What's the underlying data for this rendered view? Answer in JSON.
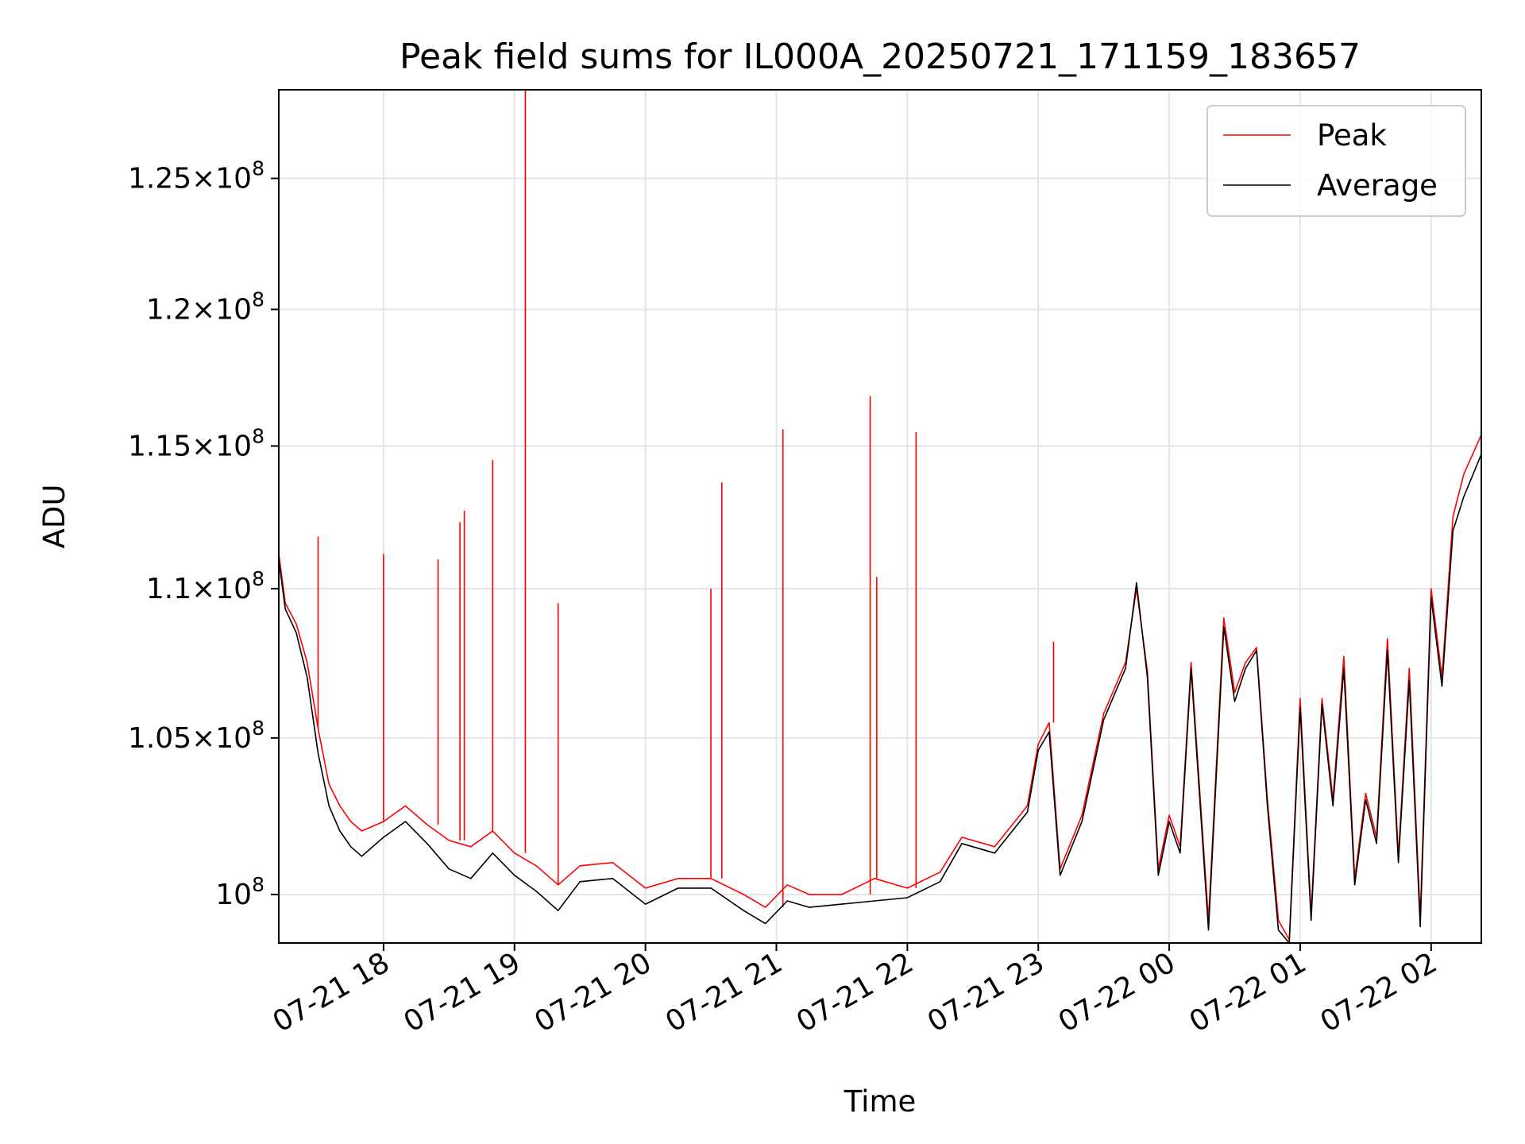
{
  "chart_data": {
    "type": "line",
    "title": "Peak field sums for IL000A_20250721_171159_183657",
    "xlabel": "Time",
    "ylabel": "ADU",
    "y_scale": "log",
    "grid": true,
    "legend_position": "top-right",
    "xlim": [
      "2025-07-21 17:12",
      "2025-07-22 02:23"
    ],
    "ylim": [
      98500000,
      128500000
    ],
    "x_ticks": [
      {
        "value": "2025-07-21 18:00",
        "label": "07-21 18"
      },
      {
        "value": "2025-07-21 19:00",
        "label": "07-21 19"
      },
      {
        "value": "2025-07-21 20:00",
        "label": "07-21 20"
      },
      {
        "value": "2025-07-21 21:00",
        "label": "07-21 21"
      },
      {
        "value": "2025-07-21 22:00",
        "label": "07-21 22"
      },
      {
        "value": "2025-07-21 23:00",
        "label": "07-21 23"
      },
      {
        "value": "2025-07-22 00:00",
        "label": "07-22 00"
      },
      {
        "value": "2025-07-22 01:00",
        "label": "07-22 01"
      },
      {
        "value": "2025-07-22 02:00",
        "label": "07-22 02"
      }
    ],
    "y_ticks": [
      {
        "value": 100000000,
        "mantissa": "",
        "exponent": "8",
        "label": "10^8"
      },
      {
        "value": 105000000,
        "mantissa": "1.05",
        "exponent": "8",
        "label": "1.05×10^8"
      },
      {
        "value": 110000000,
        "mantissa": "1.1",
        "exponent": "8",
        "label": "1.1×10^8"
      },
      {
        "value": 115000000,
        "mantissa": "1.15",
        "exponent": "8",
        "label": "1.15×10^8"
      },
      {
        "value": 120000000,
        "mantissa": "1.2",
        "exponent": "8",
        "label": "1.2×10^8"
      },
      {
        "value": 125000000,
        "mantissa": "1.25",
        "exponent": "8",
        "label": "1.25×10^8"
      }
    ],
    "series": [
      {
        "name": "Peak",
        "color": "#ff0000",
        "points": [
          [
            "2025-07-21 17:12",
            111200000
          ],
          [
            "2025-07-21 17:15",
            109500000
          ],
          [
            "2025-07-21 17:20",
            108800000
          ],
          [
            "2025-07-21 17:25",
            107500000
          ],
          [
            "2025-07-21 17:30",
            105300000
          ],
          [
            "2025-07-21 17:35",
            103500000
          ],
          [
            "2025-07-21 17:40",
            102800000
          ],
          [
            "2025-07-21 17:45",
            102300000
          ],
          [
            "2025-07-21 17:50",
            102000000
          ],
          [
            "2025-07-21 18:00",
            102300000
          ],
          [
            "2025-07-21 18:10",
            102800000
          ],
          [
            "2025-07-21 18:20",
            102200000
          ],
          [
            "2025-07-21 18:30",
            101700000
          ],
          [
            "2025-07-21 18:40",
            101500000
          ],
          [
            "2025-07-21 18:50",
            102000000
          ],
          [
            "2025-07-21 19:00",
            101300000
          ],
          [
            "2025-07-21 19:10",
            100900000
          ],
          [
            "2025-07-21 19:20",
            100300000
          ],
          [
            "2025-07-21 19:30",
            100900000
          ],
          [
            "2025-07-21 19:45",
            101000000
          ],
          [
            "2025-07-21 20:00",
            100200000
          ],
          [
            "2025-07-21 20:15",
            100500000
          ],
          [
            "2025-07-21 20:30",
            100500000
          ],
          [
            "2025-07-21 20:45",
            100000000
          ],
          [
            "2025-07-21 20:55",
            99600000
          ],
          [
            "2025-07-21 21:05",
            100300000
          ],
          [
            "2025-07-21 21:15",
            100000000
          ],
          [
            "2025-07-21 21:30",
            100000000
          ],
          [
            "2025-07-21 21:45",
            100500000
          ],
          [
            "2025-07-21 22:00",
            100200000
          ],
          [
            "2025-07-21 22:15",
            100700000
          ],
          [
            "2025-07-21 22:25",
            101800000
          ],
          [
            "2025-07-21 22:40",
            101500000
          ],
          [
            "2025-07-21 22:55",
            102800000
          ],
          [
            "2025-07-21 23:00",
            104800000
          ],
          [
            "2025-07-21 23:05",
            105500000
          ],
          [
            "2025-07-21 23:10",
            100800000
          ],
          [
            "2025-07-21 23:20",
            102500000
          ],
          [
            "2025-07-21 23:30",
            105800000
          ],
          [
            "2025-07-21 23:40",
            107500000
          ],
          [
            "2025-07-21 23:45",
            110000000
          ],
          [
            "2025-07-21 23:50",
            107200000
          ],
          [
            "2025-07-21 23:55",
            100800000
          ],
          [
            "2025-07-22 00:00",
            102500000
          ],
          [
            "2025-07-22 00:05",
            101500000
          ],
          [
            "2025-07-22 00:10",
            107500000
          ],
          [
            "2025-07-22 00:18",
            99200000
          ],
          [
            "2025-07-22 00:25",
            109000000
          ],
          [
            "2025-07-22 00:30",
            106500000
          ],
          [
            "2025-07-22 00:35",
            107500000
          ],
          [
            "2025-07-22 00:40",
            108000000
          ],
          [
            "2025-07-22 00:45",
            103000000
          ],
          [
            "2025-07-22 00:50",
            99200000
          ],
          [
            "2025-07-22 00:55",
            98600000
          ],
          [
            "2025-07-22 01:00",
            106300000
          ],
          [
            "2025-07-22 01:05",
            99400000
          ],
          [
            "2025-07-22 01:10",
            106300000
          ],
          [
            "2025-07-22 01:15",
            103000000
          ],
          [
            "2025-07-22 01:20",
            107700000
          ],
          [
            "2025-07-22 01:25",
            100500000
          ],
          [
            "2025-07-22 01:30",
            103200000
          ],
          [
            "2025-07-22 01:35",
            101800000
          ],
          [
            "2025-07-22 01:40",
            108300000
          ],
          [
            "2025-07-22 01:45",
            101200000
          ],
          [
            "2025-07-22 01:50",
            107300000
          ],
          [
            "2025-07-22 01:55",
            99300000
          ],
          [
            "2025-07-22 02:00",
            110000000
          ],
          [
            "2025-07-22 02:05",
            107000000
          ],
          [
            "2025-07-22 02:10",
            112500000
          ],
          [
            "2025-07-22 02:15",
            114000000
          ],
          [
            "2025-07-22 02:23",
            115400000
          ]
        ],
        "spikes": [
          [
            "2025-07-21 17:30",
            111800000
          ],
          [
            "2025-07-21 18:00",
            111200000
          ],
          [
            "2025-07-21 18:25",
            111000000
          ],
          [
            "2025-07-21 18:35",
            112300000
          ],
          [
            "2025-07-21 18:37",
            112700000
          ],
          [
            "2025-07-21 18:50",
            114500000
          ],
          [
            "2025-07-21 19:05",
            128500000
          ],
          [
            "2025-07-21 19:20",
            109500000
          ],
          [
            "2025-07-21 20:30",
            110000000
          ],
          [
            "2025-07-21 20:35",
            113700000
          ],
          [
            "2025-07-21 21:03",
            115600000
          ],
          [
            "2025-07-21 21:43",
            116800000
          ],
          [
            "2025-07-21 21:46",
            110400000
          ],
          [
            "2025-07-21 22:04",
            115500000
          ],
          [
            "2025-07-21 23:07",
            108200000
          ]
        ]
      },
      {
        "name": "Average",
        "color": "#000000",
        "points": [
          [
            "2025-07-21 17:12",
            111000000
          ],
          [
            "2025-07-21 17:15",
            109300000
          ],
          [
            "2025-07-21 17:20",
            108500000
          ],
          [
            "2025-07-21 17:25",
            107000000
          ],
          [
            "2025-07-21 17:30",
            104500000
          ],
          [
            "2025-07-21 17:35",
            102800000
          ],
          [
            "2025-07-21 17:40",
            102000000
          ],
          [
            "2025-07-21 17:45",
            101500000
          ],
          [
            "2025-07-21 17:50",
            101200000
          ],
          [
            "2025-07-21 18:00",
            101800000
          ],
          [
            "2025-07-21 18:10",
            102300000
          ],
          [
            "2025-07-21 18:20",
            101600000
          ],
          [
            "2025-07-21 18:30",
            100800000
          ],
          [
            "2025-07-21 18:40",
            100500000
          ],
          [
            "2025-07-21 18:50",
            101300000
          ],
          [
            "2025-07-21 19:00",
            100600000
          ],
          [
            "2025-07-21 19:10",
            100100000
          ],
          [
            "2025-07-21 19:20",
            99500000
          ],
          [
            "2025-07-21 19:30",
            100400000
          ],
          [
            "2025-07-21 19:45",
            100500000
          ],
          [
            "2025-07-21 20:00",
            99700000
          ],
          [
            "2025-07-21 20:15",
            100200000
          ],
          [
            "2025-07-21 20:30",
            100200000
          ],
          [
            "2025-07-21 20:45",
            99500000
          ],
          [
            "2025-07-21 20:55",
            99100000
          ],
          [
            "2025-07-21 21:05",
            99800000
          ],
          [
            "2025-07-21 21:15",
            99600000
          ],
          [
            "2025-07-21 21:30",
            99700000
          ],
          [
            "2025-07-21 21:45",
            99800000
          ],
          [
            "2025-07-21 22:00",
            99900000
          ],
          [
            "2025-07-21 22:15",
            100400000
          ],
          [
            "2025-07-21 22:25",
            101600000
          ],
          [
            "2025-07-21 22:40",
            101300000
          ],
          [
            "2025-07-21 22:55",
            102600000
          ],
          [
            "2025-07-21 23:00",
            104600000
          ],
          [
            "2025-07-21 23:05",
            105200000
          ],
          [
            "2025-07-21 23:10",
            100600000
          ],
          [
            "2025-07-21 23:20",
            102300000
          ],
          [
            "2025-07-21 23:30",
            105600000
          ],
          [
            "2025-07-21 23:40",
            107300000
          ],
          [
            "2025-07-21 23:45",
            110200000
          ],
          [
            "2025-07-21 23:50",
            107000000
          ],
          [
            "2025-07-21 23:55",
            100600000
          ],
          [
            "2025-07-22 00:00",
            102300000
          ],
          [
            "2025-07-22 00:05",
            101300000
          ],
          [
            "2025-07-22 00:10",
            107300000
          ],
          [
            "2025-07-22 00:18",
            98900000
          ],
          [
            "2025-07-22 00:25",
            108700000
          ],
          [
            "2025-07-22 00:30",
            106200000
          ],
          [
            "2025-07-22 00:35",
            107300000
          ],
          [
            "2025-07-22 00:40",
            107900000
          ],
          [
            "2025-07-22 00:45",
            102800000
          ],
          [
            "2025-07-22 00:50",
            98900000
          ],
          [
            "2025-07-22 00:55",
            98500000
          ],
          [
            "2025-07-22 01:00",
            106000000
          ],
          [
            "2025-07-22 01:05",
            99200000
          ],
          [
            "2025-07-22 01:10",
            106100000
          ],
          [
            "2025-07-22 01:15",
            102800000
          ],
          [
            "2025-07-22 01:20",
            107300000
          ],
          [
            "2025-07-22 01:25",
            100300000
          ],
          [
            "2025-07-22 01:30",
            103000000
          ],
          [
            "2025-07-22 01:35",
            101600000
          ],
          [
            "2025-07-22 01:40",
            107900000
          ],
          [
            "2025-07-22 01:45",
            101000000
          ],
          [
            "2025-07-22 01:50",
            106900000
          ],
          [
            "2025-07-22 01:55",
            99000000
          ],
          [
            "2025-07-22 02:00",
            109700000
          ],
          [
            "2025-07-22 02:05",
            106700000
          ],
          [
            "2025-07-22 02:10",
            112000000
          ],
          [
            "2025-07-22 02:15",
            113200000
          ],
          [
            "2025-07-22 02:23",
            114700000
          ]
        ]
      }
    ]
  }
}
